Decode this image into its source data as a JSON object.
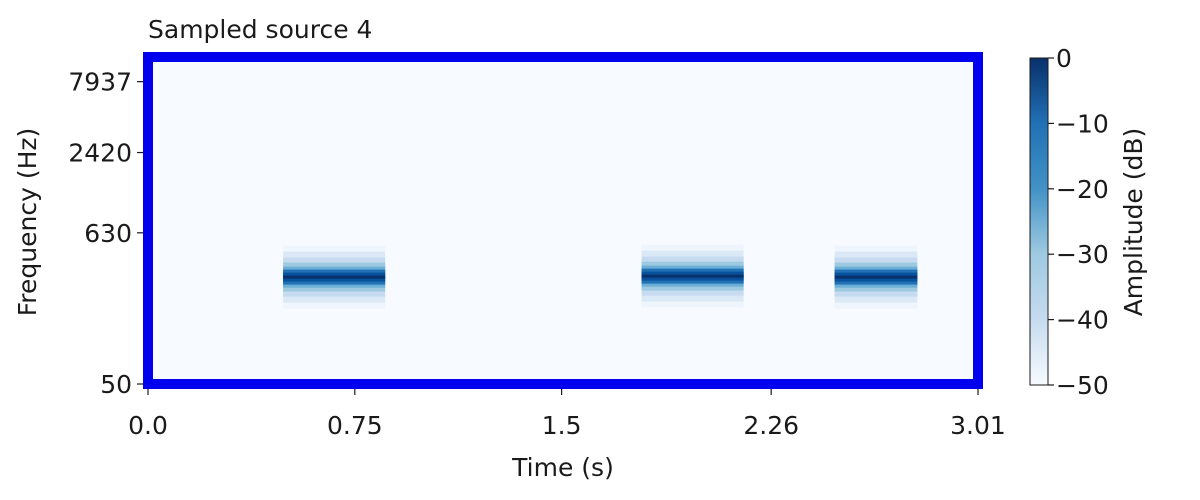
{
  "chart_data": {
    "type": "heatmap",
    "title": "Sampled source 4",
    "xlabel": "Time (s)",
    "ylabel": "Frequency (Hz)",
    "xlim": [
      0.0,
      3.01
    ],
    "x_ticks": [
      0.0,
      0.75,
      1.5,
      2.26,
      3.01
    ],
    "x_tick_labels": [
      "0.0",
      "0.75",
      "1.5",
      "2.26",
      "3.01"
    ],
    "y_scale": "log",
    "ylim": [
      50,
      12000
    ],
    "y_ticks": [
      50,
      630,
      2420,
      7937
    ],
    "y_tick_labels": [
      "50",
      "630",
      "2420",
      "7937"
    ],
    "colormap": "Blues",
    "colorbar": {
      "label": "Amplitude (dB)",
      "range": [
        -50,
        0
      ],
      "ticks": [
        0,
        -10,
        -20,
        -30,
        -40,
        -50
      ],
      "tick_labels": [
        "0",
        "−10",
        "−20",
        "−30",
        "−40",
        "−50"
      ]
    },
    "background_db": -50,
    "events": [
      {
        "t_start": 0.49,
        "t_end": 0.86,
        "freq_hz": 300,
        "peak_db": 0
      },
      {
        "t_start": 1.79,
        "t_end": 2.16,
        "freq_hz": 305,
        "peak_db": 0
      },
      {
        "t_start": 2.49,
        "t_end": 2.79,
        "freq_hz": 300,
        "peak_db": 0
      }
    ],
    "frame_color": "#0000ee",
    "grid": false
  }
}
